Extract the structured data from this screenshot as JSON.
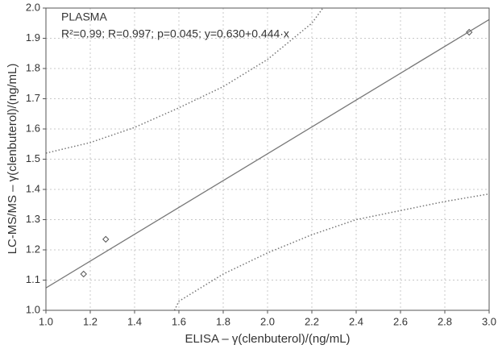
{
  "chart_data": {
    "type": "scatter",
    "annotations": [
      "PLASMA",
      "R²=0.99;  R=0.997;  p=0.045;  y=0.630+0.444·x"
    ],
    "x_label": "ELISA – γ(clenbuterol)/(ng/mL)",
    "y_label": "LC-MS/MS – γ(clenbuterol)/(ng/mL)",
    "xlim": [
      1.0,
      3.0
    ],
    "xticks": [
      {
        "value": 1.0,
        "label": "1.0"
      },
      1.2,
      1.4,
      1.6,
      1.8,
      {
        "value": 2.0,
        "label": "2.0"
      },
      2.2,
      2.4,
      2.6,
      2.8,
      {
        "value": 3.0,
        "label": "3.0"
      }
    ],
    "ylim": [
      1.0,
      2.0
    ],
    "yticks": [
      {
        "value": 1.0,
        "label": "1.0"
      },
      1.1,
      1.2,
      1.3,
      1.4,
      1.5,
      1.6,
      1.7,
      1.8,
      1.9,
      {
        "value": 2.0,
        "label": "2.0"
      }
    ],
    "grid": true,
    "series": [
      {
        "style": "markers",
        "color": "#555555",
        "x": [
          1.17,
          1.27,
          2.91
        ],
        "values": [
          1.12,
          1.235,
          1.92
        ]
      },
      {
        "style": "solid",
        "color": "#777777",
        "x": [
          1.0,
          3.0
        ],
        "values": [
          1.074,
          1.962
        ]
      },
      {
        "style": "dotted",
        "color": "#777777",
        "x": [
          1.0,
          1.2,
          1.4,
          1.6,
          1.8,
          2.0,
          2.2,
          2.25
        ],
        "values": [
          1.52,
          1.555,
          1.605,
          1.67,
          1.74,
          1.83,
          1.95,
          2.0
        ]
      },
      {
        "style": "dotted",
        "color": "#777777",
        "x": [
          1.58,
          1.6,
          1.8,
          2.0,
          2.2,
          2.4,
          2.6,
          2.8,
          3.0
        ],
        "values": [
          1.0,
          1.03,
          1.12,
          1.19,
          1.25,
          1.3,
          1.33,
          1.36,
          1.385
        ]
      }
    ]
  }
}
